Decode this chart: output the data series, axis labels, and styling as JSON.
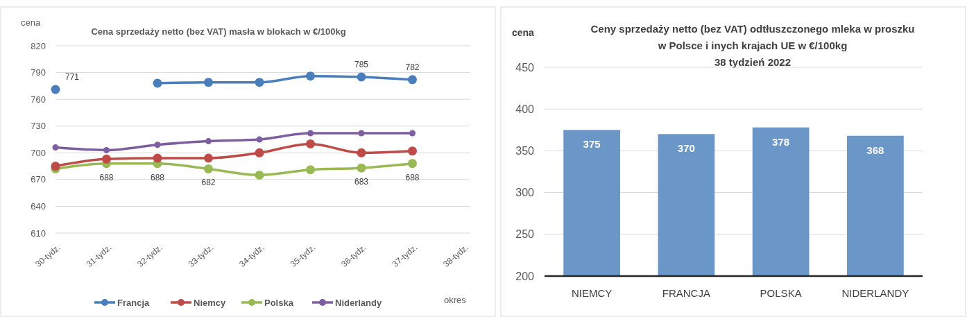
{
  "chart_data": [
    {
      "type": "line",
      "title": "Cena sprzedaży netto (bez VAT) masła w blokach w €/100kg",
      "ylabel": "cena",
      "xlabel": "okres",
      "categories": [
        "30-tydz.",
        "31-tydz.",
        "32-tydz.",
        "33-tydz.",
        "34-tydz.",
        "35-tydz.",
        "36-tydz.",
        "37-tydz.",
        "38-tydz."
      ],
      "series": [
        {
          "name": "Francja",
          "color": "#4a7ebb",
          "values": [
            771,
            null,
            778,
            779,
            779,
            786,
            785,
            782,
            null
          ],
          "value_labels": [
            "771",
            null,
            null,
            null,
            null,
            null,
            "785",
            "782",
            null
          ]
        },
        {
          "name": "Niemcy",
          "color": "#be4b48",
          "values": [
            685,
            693,
            694,
            694,
            700,
            710,
            700,
            702,
            null
          ]
        },
        {
          "name": "Polska",
          "color": "#98b954",
          "values": [
            682,
            688,
            688,
            682,
            675,
            681,
            683,
            688,
            null
          ],
          "value_labels": [
            null,
            "688",
            "688",
            "682",
            null,
            null,
            "683",
            "688",
            null
          ]
        },
        {
          "name": "Niderlandy",
          "color": "#7d5fa0",
          "values": [
            706,
            703,
            709,
            713,
            715,
            722,
            722,
            722,
            null
          ]
        }
      ],
      "ylim": [
        610,
        820
      ],
      "yticks": [
        610,
        640,
        670,
        700,
        730,
        760,
        790,
        820
      ],
      "grid": "y",
      "legend": "bottom",
      "marker": "circle"
    },
    {
      "type": "bar",
      "title": "Ceny sprzedaży netto  (bez VAT) odtłuszczonego mleka w proszku\nw Polsce i inych krajach  UE w €/100kg\n38  tydzień 2022",
      "ylabel": "cena",
      "categories": [
        "NIEMCY",
        "FRANCJA",
        "POLSKA",
        "NIDERLANDY"
      ],
      "values": [
        375,
        370,
        378,
        368
      ],
      "color": "#6a96c8",
      "ylim": [
        200,
        450
      ],
      "yticks": [
        200,
        250,
        300,
        350,
        400,
        450
      ],
      "grid": "y",
      "data_labels": true
    }
  ]
}
